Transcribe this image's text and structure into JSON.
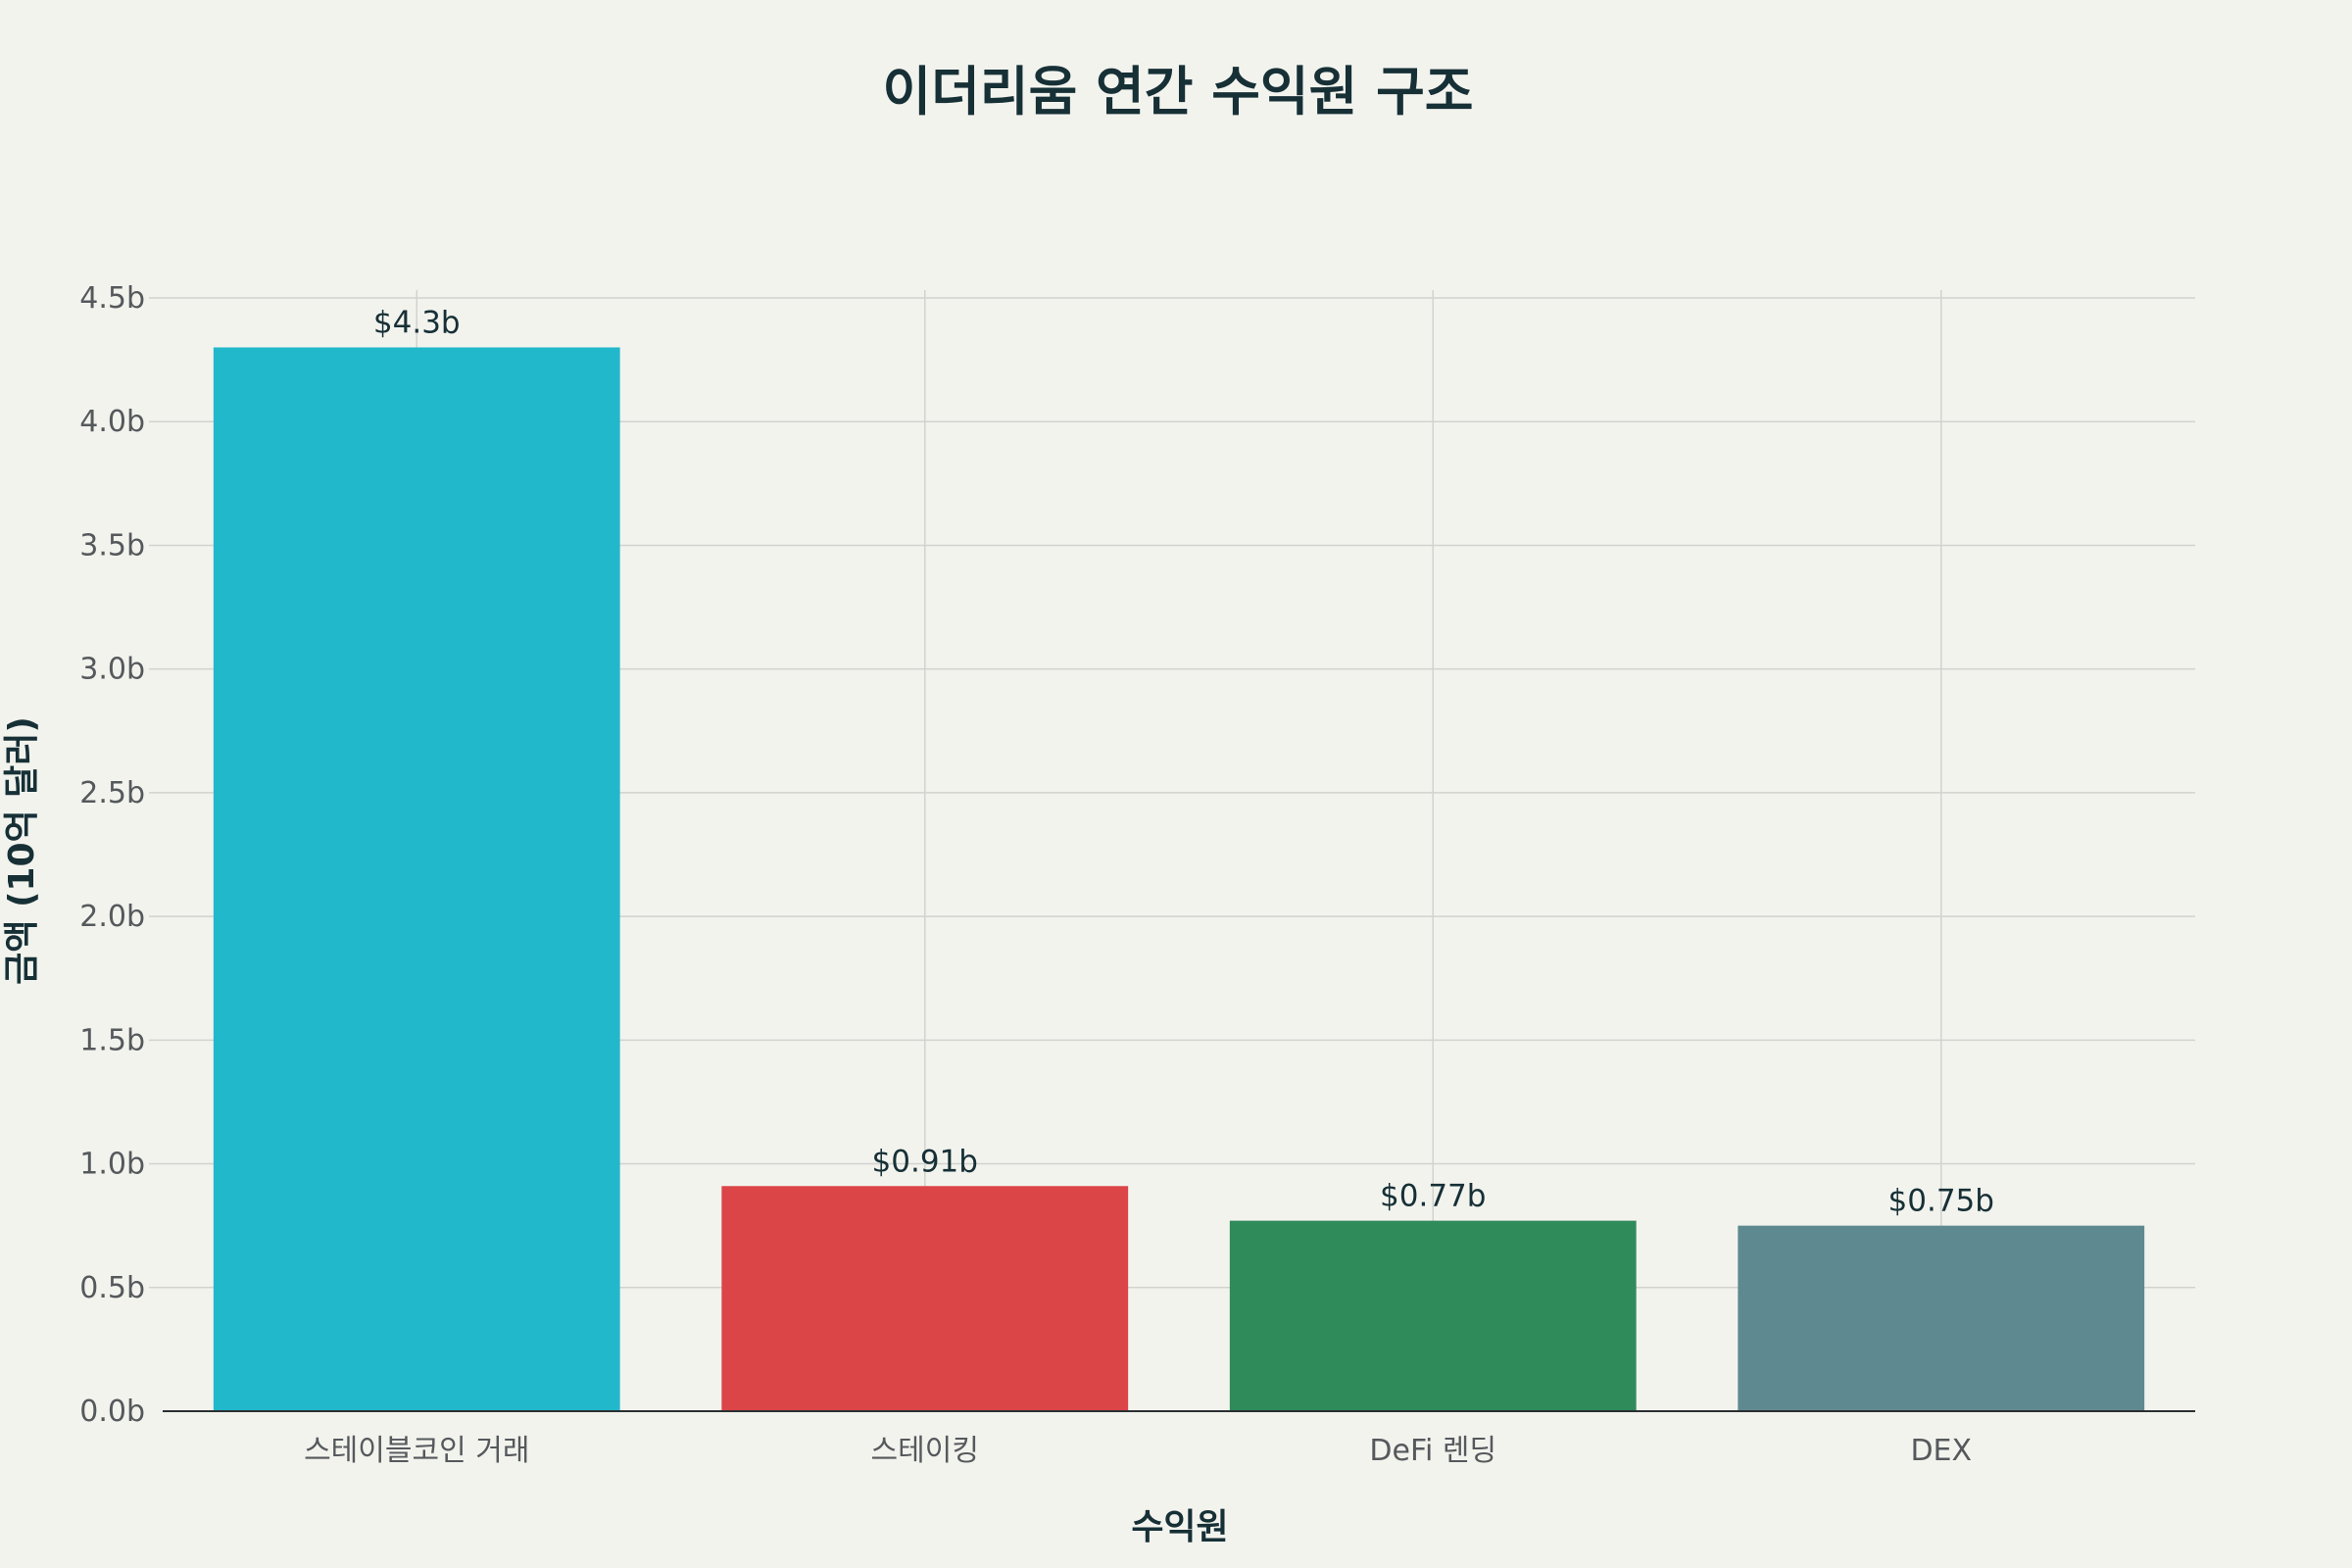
{
  "chart_data": {
    "type": "bar",
    "title": "이더리움 연간 수익원 구조",
    "xlabel": "수익원",
    "ylabel": "금액 (10억 달러)",
    "categories": [
      "스테이블코인 거래",
      "스테이킹",
      "DeFi 렌딩",
      "DEX"
    ],
    "values": [
      4.3,
      0.91,
      0.77,
      0.75
    ],
    "data_labels": [
      "$4.3b",
      "$0.91b",
      "$0.77b",
      "$0.75b"
    ],
    "colors": [
      "#21b8cc",
      "#db4548",
      "#2f8b5a",
      "#5f8990"
    ],
    "ylim": [
      0,
      4.5
    ],
    "yticks": [
      0,
      0.5,
      1,
      1.5,
      2,
      2.5,
      3,
      3.5,
      4,
      4.5
    ],
    "ytick_labels": [
      "0.0b",
      "0.5b",
      "1.0b",
      "1.5b",
      "2.0b",
      "2.5b",
      "3.0b",
      "3.5b",
      "4.0b",
      "4.5b"
    ],
    "grid": true,
    "legend": "none"
  }
}
